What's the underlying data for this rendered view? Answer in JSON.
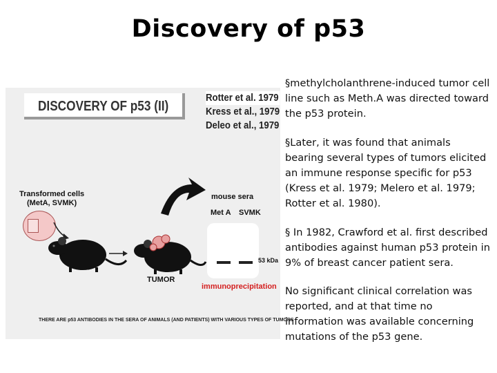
{
  "title": "Discovery of p53",
  "figure": {
    "banner": "DISCOVERY OF p53 (II)",
    "references": [
      "Rotter et al. 1979",
      "Kress et al., 1979",
      "Deleo et al., 1979"
    ],
    "transformed_cells": "Transformed cells",
    "cell_lines": "(MetA, SVMK)",
    "tumor_label": "TUMOR",
    "mouse_sera": "mouse sera",
    "lane_1": "Met A",
    "lane_2": "SVMK",
    "kda": "53 kDa",
    "immunoprecipitation": "immunoprecipitation",
    "footer": "THERE ARE p53 ANTIBODIES IN THE SERA OF ANIMALS (AND PATIENTS) WITH VARIOUS TYPES OF TUMORS"
  },
  "bullets": [
    "§methylcholanthrene-induced tumor cell line such as Meth.A was directed toward the p53 protein.",
    "§Later, it was found that animals bearing several types of tumors elicited an immune response specific for p53 (Kress et al. 1979; Melero et al. 1979; Rotter et al. 1980).",
    "§ In 1982, Crawford et al. first described antibodies against human p53 protein in 9% of breast cancer patient sera.",
    "No significant clinical correlation was reported, and at that time no information was available concerning mutations of the p53 gene."
  ]
}
